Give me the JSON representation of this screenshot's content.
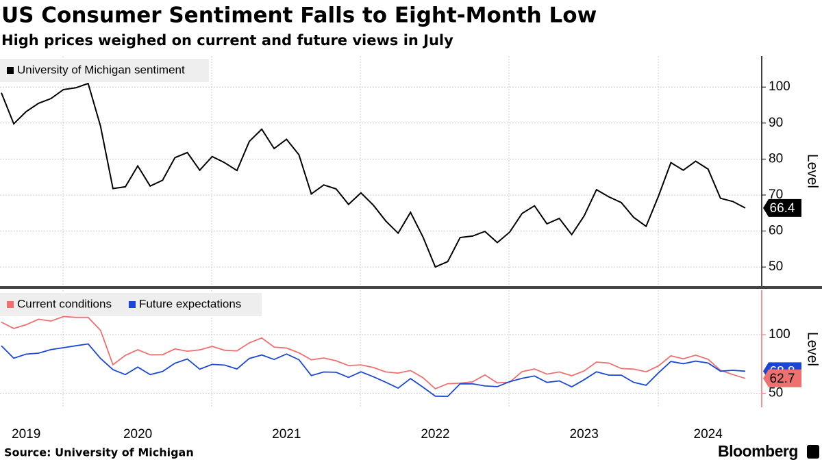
{
  "title": "US Consumer Sentiment Falls to Eight-Month Low",
  "subtitle": "High prices weighed on current and future views in July",
  "source": "Source: University of Michigan",
  "brand": "Bloomberg",
  "chart_data": [
    {
      "type": "line",
      "ylabel": "Level",
      "ylim": [
        44.7,
        108.6
      ],
      "yticks": [
        50,
        60,
        70,
        80,
        90,
        100
      ],
      "grid": true,
      "series": [
        {
          "name": "University of Michigan sentiment",
          "color": "#000000",
          "values": [
            98.4,
            89.8,
            93.2,
            95.5,
            96.8,
            99.3,
            99.8,
            101.0,
            89.1,
            71.8,
            72.3,
            78.1,
            72.5,
            74.1,
            80.4,
            81.8,
            76.9,
            80.7,
            79.0,
            76.8,
            84.9,
            88.3,
            82.9,
            85.5,
            81.2,
            70.3,
            72.8,
            71.7,
            67.4,
            70.6,
            67.2,
            62.8,
            59.4,
            65.2,
            58.4,
            50.0,
            51.5,
            58.2,
            58.6,
            59.9,
            56.8,
            59.7,
            64.9,
            67.0,
            62.0,
            63.5,
            59.0,
            64.2,
            71.5,
            69.5,
            67.9,
            63.8,
            61.3,
            69.7,
            79.0,
            76.9,
            79.4,
            77.2,
            69.1,
            68.2,
            66.4
          ]
        }
      ]
    },
    {
      "type": "line",
      "ylabel": "Level",
      "ylim": [
        38,
        138
      ],
      "yticks": [
        50,
        100
      ],
      "grid": true,
      "categories": [
        null,
        null,
        "2019",
        null,
        null,
        null,
        null,
        null,
        null,
        null,
        null,
        "2020",
        null,
        null,
        null,
        null,
        null,
        null,
        null,
        null,
        null,
        null,
        null,
        "2021",
        null,
        null,
        null,
        null,
        null,
        null,
        null,
        null,
        null,
        null,
        null,
        "2022",
        null,
        null,
        null,
        null,
        null,
        null,
        null,
        null,
        null,
        null,
        null,
        "2023",
        null,
        null,
        null,
        null,
        null,
        null,
        null,
        null,
        null,
        "2024",
        null,
        null,
        null
      ],
      "series": [
        {
          "name": "Current conditions",
          "color": "#f06f6f",
          "values": [
            110.7,
            105.3,
            108.5,
            113.2,
            111.6,
            115.5,
            114.8,
            114.8,
            103.7,
            74.3,
            82.3,
            87.1,
            82.8,
            82.9,
            87.8,
            85.9,
            87.0,
            90.0,
            86.7,
            86.2,
            93.0,
            97.2,
            89.4,
            88.6,
            84.5,
            78.5,
            80.1,
            77.7,
            73.6,
            74.2,
            72.0,
            68.2,
            67.2,
            69.4,
            63.3,
            53.8,
            58.1,
            58.6,
            59.7,
            65.6,
            58.8,
            59.4,
            68.4,
            70.7,
            66.3,
            68.2,
            64.9,
            69.0,
            76.6,
            75.7,
            71.1,
            70.6,
            68.3,
            73.3,
            81.9,
            79.4,
            82.5,
            79.0,
            69.6,
            65.9,
            62.7
          ]
        },
        {
          "name": "Future expectations",
          "color": "#1a47d6",
          "values": [
            90.5,
            79.9,
            83.4,
            84.2,
            87.3,
            88.9,
            90.5,
            92.1,
            79.7,
            70.1,
            65.9,
            72.3,
            65.9,
            68.5,
            75.6,
            79.2,
            70.5,
            74.6,
            74.0,
            70.7,
            79.7,
            82.7,
            78.8,
            83.5,
            78.6,
            65.1,
            68.1,
            67.9,
            63.5,
            68.3,
            64.1,
            59.4,
            54.3,
            62.5,
            55.2,
            47.5,
            47.3,
            58.0,
            58.0,
            56.2,
            55.6,
            59.9,
            62.7,
            64.7,
            59.2,
            60.5,
            55.4,
            61.5,
            68.3,
            65.4,
            65.4,
            59.3,
            56.8,
            67.4,
            77.1,
            75.2,
            77.4,
            75.8,
            68.8,
            69.6,
            68.8
          ]
        }
      ]
    }
  ]
}
